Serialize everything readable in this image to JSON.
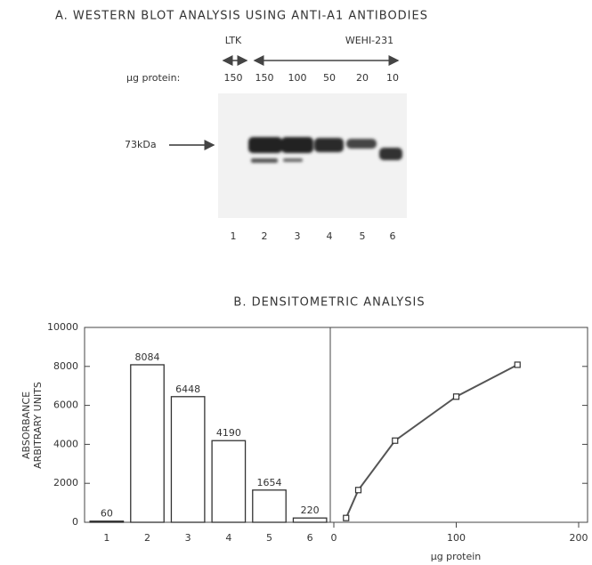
{
  "panel_a": {
    "title": "A. WESTERN BLOT ANALYSIS USING ANTI-A1 ANTIBODIES",
    "groups": [
      "LTK",
      "WEHI-231"
    ],
    "amount_label": "µg protein:",
    "amounts": [
      "150",
      "150",
      "100",
      "50",
      "20",
      "10"
    ],
    "marker": "73kDa",
    "lanes": [
      "1",
      "2",
      "3",
      "4",
      "5",
      "6"
    ]
  },
  "panel_b_title": "B. DENSITOMETRIC ANALYSIS",
  "chart_data": [
    {
      "type": "bar",
      "ylabel": [
        "ABSORBANCE",
        "ARBITRARY UNITS"
      ],
      "categories": [
        "1",
        "2",
        "3",
        "4",
        "5",
        "6"
      ],
      "values": [
        60,
        8084,
        6448,
        4190,
        1654,
        220
      ],
      "ylim": [
        0,
        10000
      ],
      "yticks": [
        0,
        2000,
        4000,
        6000,
        8000,
        10000
      ],
      "color": "#ffffff"
    },
    {
      "type": "line",
      "xlabel": "µg protein",
      "x": [
        10,
        20,
        50,
        100,
        150
      ],
      "values": [
        220,
        1654,
        4190,
        6448,
        8084
      ],
      "xlim": [
        0,
        200
      ],
      "xticks": [
        0,
        100,
        200
      ],
      "ylim": [
        0,
        10000
      ],
      "color": "#555555"
    }
  ]
}
